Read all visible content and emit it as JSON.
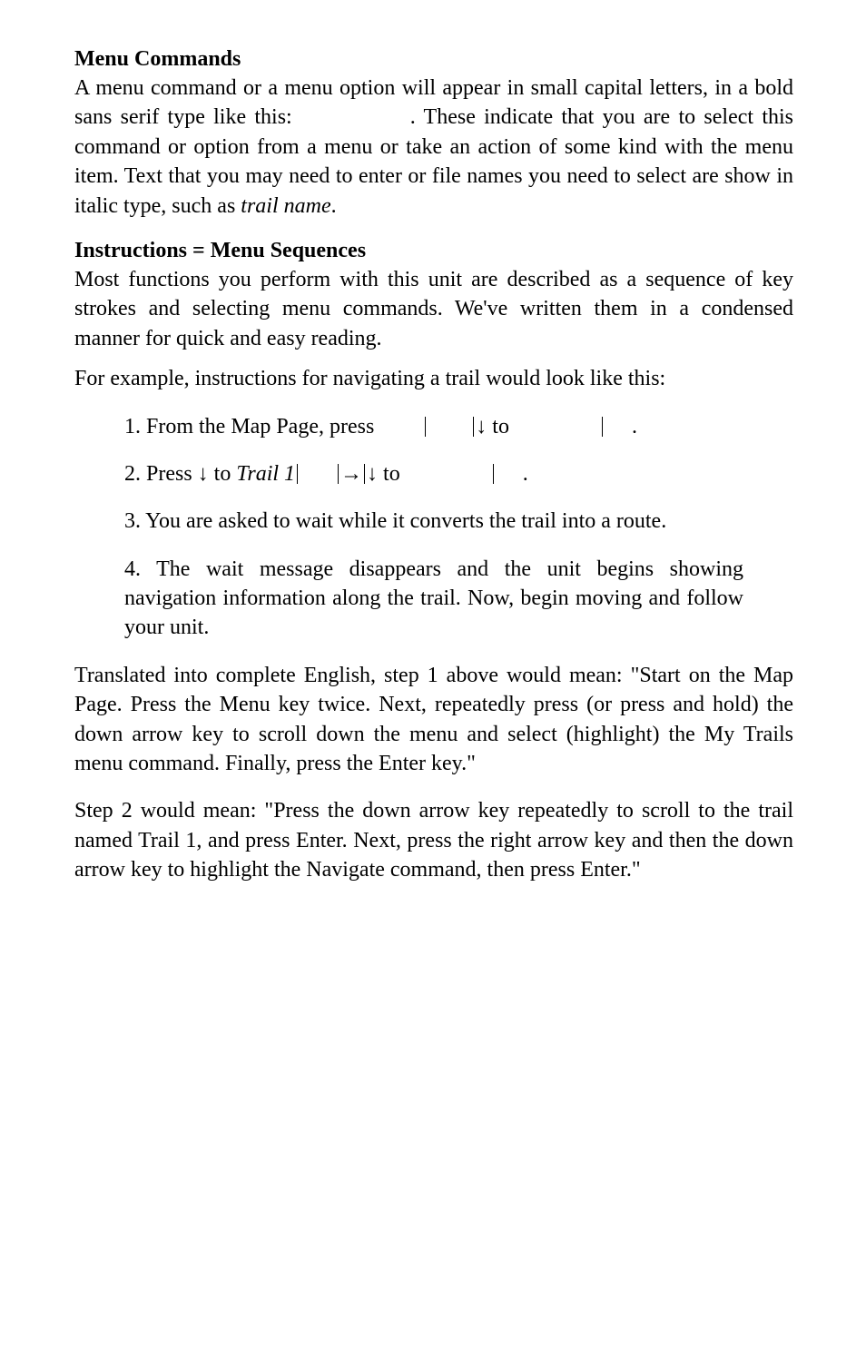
{
  "section1": {
    "heading": "Menu Commands",
    "p1_before": "A menu command or a menu option will appear in small capital letters, in a bold sans serif type like this:",
    "p1_after": ". These indicate that you are to select this command or option from a menu or take an action of some kind with the menu item. Text that you may need to enter or file names you need to select are show in italic type, such as ",
    "p1_italic": "trail name",
    "p1_end": "."
  },
  "section2": {
    "heading": "Instructions = Menu Sequences",
    "p1": "Most functions you perform with this unit are described as a sequence of key strokes and selecting menu commands. We've written them in a condensed manner for quick and easy reading.",
    "p2": "For example, instructions for navigating a trail would look like this:",
    "steps": {
      "s1_a": "1. From the Map Page, press ",
      "s1_b": " to ",
      "s1_c": ".",
      "s2_a": "2. Press ",
      "s2_arrow1": "↓",
      "s2_b": " to ",
      "s2_italic": "Trail 1",
      "s2_arrow2": "→",
      "s2_arrow3": "↓",
      "s2_c": " to ",
      "s2_d": ".",
      "s3": "3. You are asked to wait while it converts the trail into a route.",
      "s4": "4. The wait message disappears and the unit begins showing navigation information along the trail. Now, begin moving and follow your unit."
    },
    "p3": "Translated into complete English, step 1 above would mean: \"Start on the Map Page. Press the Menu key twice. Next, repeatedly press (or press and hold) the down arrow key to scroll down the menu and select (highlight) the My Trails menu command. Finally, press the Enter key.\"",
    "p4": "Step 2 would mean: \"Press the down arrow key repeatedly to scroll to the trail named Trail 1, and press Enter. Next, press the right arrow key and then the down arrow key to highlight the Navigate command, then press Enter.\""
  },
  "glyphs": {
    "pipe": "|",
    "down": "↓",
    "right": "→"
  }
}
